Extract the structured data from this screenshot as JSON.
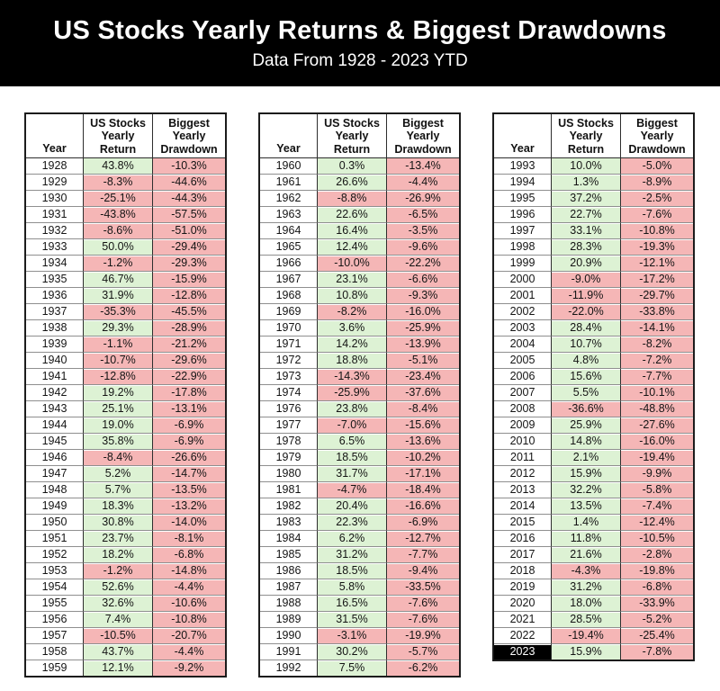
{
  "banner": {
    "title": "US Stocks Yearly Returns & Biggest Drawdowns",
    "subtitle": "Data From 1928 - 2023 YTD"
  },
  "colors": {
    "positive_bg": "#ddf2d4",
    "negative_bg": "#f5b6b6",
    "banner_bg": "#000000",
    "banner_text": "#ffffff",
    "highlight_year_bg": "#000000",
    "highlight_year_text": "#ffffff"
  },
  "chart_data": {
    "type": "table",
    "title": "US Stocks Yearly Returns & Biggest Drawdowns",
    "subtitle": "Data From 1928 - 2023 YTD",
    "headers": [
      "Year",
      "US Stocks\nYearly\nReturn",
      "Biggest\nYearly\nDrawdown"
    ],
    "highlighted_year": "2023",
    "tables": [
      {
        "rows": [
          [
            "1928",
            "43.8%",
            "-10.3%"
          ],
          [
            "1929",
            "-8.3%",
            "-44.6%"
          ],
          [
            "1930",
            "-25.1%",
            "-44.3%"
          ],
          [
            "1931",
            "-43.8%",
            "-57.5%"
          ],
          [
            "1932",
            "-8.6%",
            "-51.0%"
          ],
          [
            "1933",
            "50.0%",
            "-29.4%"
          ],
          [
            "1934",
            "-1.2%",
            "-29.3%"
          ],
          [
            "1935",
            "46.7%",
            "-15.9%"
          ],
          [
            "1936",
            "31.9%",
            "-12.8%"
          ],
          [
            "1937",
            "-35.3%",
            "-45.5%"
          ],
          [
            "1938",
            "29.3%",
            "-28.9%"
          ],
          [
            "1939",
            "-1.1%",
            "-21.2%"
          ],
          [
            "1940",
            "-10.7%",
            "-29.6%"
          ],
          [
            "1941",
            "-12.8%",
            "-22.9%"
          ],
          [
            "1942",
            "19.2%",
            "-17.8%"
          ],
          [
            "1943",
            "25.1%",
            "-13.1%"
          ],
          [
            "1944",
            "19.0%",
            "-6.9%"
          ],
          [
            "1945",
            "35.8%",
            "-6.9%"
          ],
          [
            "1946",
            "-8.4%",
            "-26.6%"
          ],
          [
            "1947",
            "5.2%",
            "-14.7%"
          ],
          [
            "1948",
            "5.7%",
            "-13.5%"
          ],
          [
            "1949",
            "18.3%",
            "-13.2%"
          ],
          [
            "1950",
            "30.8%",
            "-14.0%"
          ],
          [
            "1951",
            "23.7%",
            "-8.1%"
          ],
          [
            "1952",
            "18.2%",
            "-6.8%"
          ],
          [
            "1953",
            "-1.2%",
            "-14.8%"
          ],
          [
            "1954",
            "52.6%",
            "-4.4%"
          ],
          [
            "1955",
            "32.6%",
            "-10.6%"
          ],
          [
            "1956",
            "7.4%",
            "-10.8%"
          ],
          [
            "1957",
            "-10.5%",
            "-20.7%"
          ],
          [
            "1958",
            "43.7%",
            "-4.4%"
          ],
          [
            "1959",
            "12.1%",
            "-9.2%"
          ]
        ]
      },
      {
        "rows": [
          [
            "1960",
            "0.3%",
            "-13.4%"
          ],
          [
            "1961",
            "26.6%",
            "-4.4%"
          ],
          [
            "1962",
            "-8.8%",
            "-26.9%"
          ],
          [
            "1963",
            "22.6%",
            "-6.5%"
          ],
          [
            "1964",
            "16.4%",
            "-3.5%"
          ],
          [
            "1965",
            "12.4%",
            "-9.6%"
          ],
          [
            "1966",
            "-10.0%",
            "-22.2%"
          ],
          [
            "1967",
            "23.1%",
            "-6.6%"
          ],
          [
            "1968",
            "10.8%",
            "-9.3%"
          ],
          [
            "1969",
            "-8.2%",
            "-16.0%"
          ],
          [
            "1970",
            "3.6%",
            "-25.9%"
          ],
          [
            "1971",
            "14.2%",
            "-13.9%"
          ],
          [
            "1972",
            "18.8%",
            "-5.1%"
          ],
          [
            "1973",
            "-14.3%",
            "-23.4%"
          ],
          [
            "1974",
            "-25.9%",
            "-37.6%"
          ],
          [
            "1976",
            "23.8%",
            "-8.4%"
          ],
          [
            "1977",
            "-7.0%",
            "-15.6%"
          ],
          [
            "1978",
            "6.5%",
            "-13.6%"
          ],
          [
            "1979",
            "18.5%",
            "-10.2%"
          ],
          [
            "1980",
            "31.7%",
            "-17.1%"
          ],
          [
            "1981",
            "-4.7%",
            "-18.4%"
          ],
          [
            "1982",
            "20.4%",
            "-16.6%"
          ],
          [
            "1983",
            "22.3%",
            "-6.9%"
          ],
          [
            "1984",
            "6.2%",
            "-12.7%"
          ],
          [
            "1985",
            "31.2%",
            "-7.7%"
          ],
          [
            "1986",
            "18.5%",
            "-9.4%"
          ],
          [
            "1987",
            "5.8%",
            "-33.5%"
          ],
          [
            "1988",
            "16.5%",
            "-7.6%"
          ],
          [
            "1989",
            "31.5%",
            "-7.6%"
          ],
          [
            "1990",
            "-3.1%",
            "-19.9%"
          ],
          [
            "1991",
            "30.2%",
            "-5.7%"
          ],
          [
            "1992",
            "7.5%",
            "-6.2%"
          ]
        ]
      },
      {
        "rows": [
          [
            "1993",
            "10.0%",
            "-5.0%"
          ],
          [
            "1994",
            "1.3%",
            "-8.9%"
          ],
          [
            "1995",
            "37.2%",
            "-2.5%"
          ],
          [
            "1996",
            "22.7%",
            "-7.6%"
          ],
          [
            "1997",
            "33.1%",
            "-10.8%"
          ],
          [
            "1998",
            "28.3%",
            "-19.3%"
          ],
          [
            "1999",
            "20.9%",
            "-12.1%"
          ],
          [
            "2000",
            "-9.0%",
            "-17.2%"
          ],
          [
            "2001",
            "-11.9%",
            "-29.7%"
          ],
          [
            "2002",
            "-22.0%",
            "-33.8%"
          ],
          [
            "2003",
            "28.4%",
            "-14.1%"
          ],
          [
            "2004",
            "10.7%",
            "-8.2%"
          ],
          [
            "2005",
            "4.8%",
            "-7.2%"
          ],
          [
            "2006",
            "15.6%",
            "-7.7%"
          ],
          [
            "2007",
            "5.5%",
            "-10.1%"
          ],
          [
            "2008",
            "-36.6%",
            "-48.8%"
          ],
          [
            "2009",
            "25.9%",
            "-27.6%"
          ],
          [
            "2010",
            "14.8%",
            "-16.0%"
          ],
          [
            "2011",
            "2.1%",
            "-19.4%"
          ],
          [
            "2012",
            "15.9%",
            "-9.9%"
          ],
          [
            "2013",
            "32.2%",
            "-5.8%"
          ],
          [
            "2014",
            "13.5%",
            "-7.4%"
          ],
          [
            "2015",
            "1.4%",
            "-12.4%"
          ],
          [
            "2016",
            "11.8%",
            "-10.5%"
          ],
          [
            "2017",
            "21.6%",
            "-2.8%"
          ],
          [
            "2018",
            "-4.3%",
            "-19.8%"
          ],
          [
            "2019",
            "31.2%",
            "-6.8%"
          ],
          [
            "2020",
            "18.0%",
            "-33.9%"
          ],
          [
            "2021",
            "28.5%",
            "-5.2%"
          ],
          [
            "2022",
            "-19.4%",
            "-25.4%"
          ],
          [
            "2023",
            "15.9%",
            "-7.8%"
          ]
        ]
      }
    ]
  }
}
